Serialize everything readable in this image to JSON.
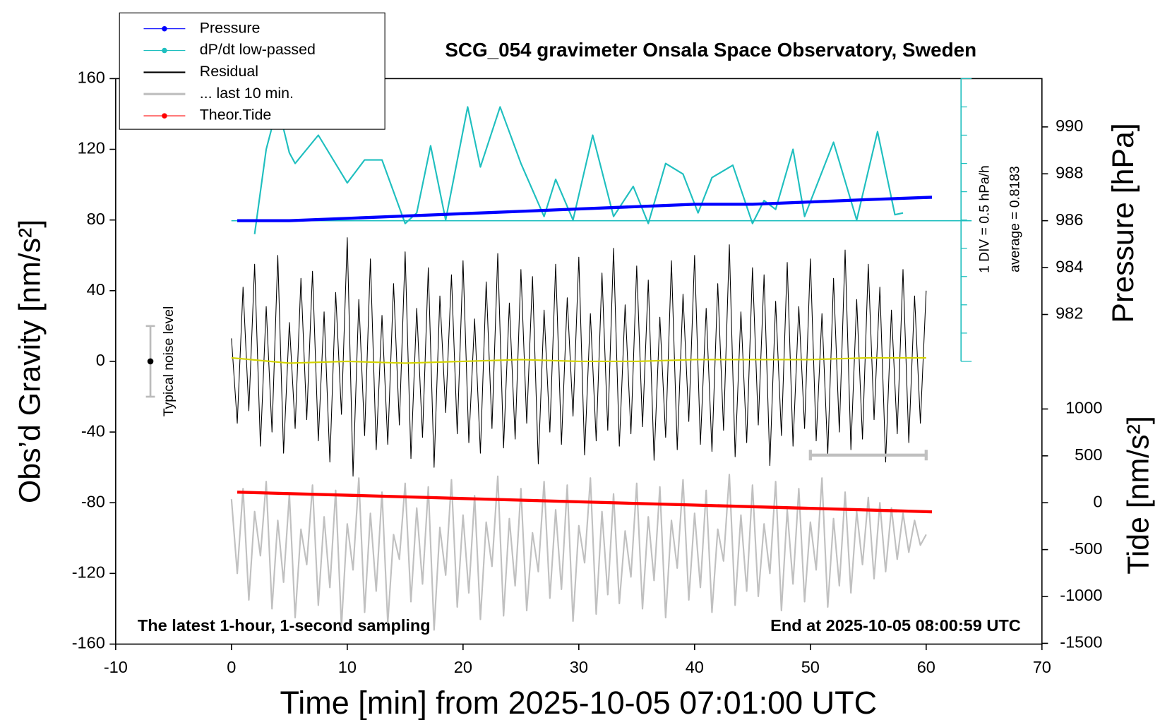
{
  "chart_data": {
    "type": "line",
    "title": "SCG_054 gravimeter Onsala Space Observatory, Sweden",
    "x_label": "Time [min] from 2025-10-05 07:01:00 UTC",
    "y_label": "Obs’d Gravity [nm/s²]",
    "y2_label": "Pressure [hPa]",
    "y3_label": "Tide [nm/s²]",
    "annotations": [
      "The latest 1-hour, 1-second sampling",
      "End at 2025-10-05 08:00:59 UTC",
      "1 DIV = 0.5 hPa/h",
      "average = 0.8183"
    ],
    "noise_bar": {
      "label": "Typical noise level",
      "x": -7,
      "value": 0,
      "error": 20
    },
    "xlim": [
      -10,
      70
    ],
    "xticks": [
      -10,
      0,
      10,
      20,
      30,
      40,
      50,
      60,
      70
    ],
    "ylim": [
      -160,
      160
    ],
    "yticks": [
      -160,
      -120,
      -80,
      -40,
      0,
      40,
      80,
      120,
      160
    ],
    "y2lim": [
      967.94,
      992.06
    ],
    "y2ticks": [
      982,
      984,
      986,
      988,
      990
    ],
    "y3lim": [
      -1508,
      4524
    ],
    "y3ticks": [
      -1500,
      -1000,
      -500,
      0,
      500,
      1000
    ],
    "x": [
      0,
      0.5,
      1,
      1.5,
      2,
      2.5,
      3,
      3.5,
      4,
      4.5,
      5,
      5.5,
      6,
      6.5,
      7,
      7.5,
      8,
      8.5,
      9,
      9.5,
      10,
      10.5,
      11,
      11.5,
      12,
      12.5,
      13,
      13.5,
      14,
      14.5,
      15,
      15.5,
      16,
      16.5,
      17,
      17.5,
      18,
      18.5,
      19,
      19.5,
      20,
      20.5,
      21,
      21.5,
      22,
      22.5,
      23,
      23.5,
      24,
      24.5,
      25,
      25.5,
      26,
      26.5,
      27,
      27.5,
      28,
      28.5,
      29,
      29.5,
      30,
      30.5,
      31,
      31.5,
      32,
      32.5,
      33,
      33.5,
      34,
      34.5,
      35,
      35.5,
      36,
      36.5,
      37,
      37.5,
      38,
      38.5,
      39,
      39.5,
      40,
      40.5,
      41,
      41.5,
      42,
      42.5,
      43,
      43.5,
      44,
      44.5,
      45,
      45.5,
      46,
      46.5,
      47,
      47.5,
      48,
      48.5,
      49,
      49.5,
      50,
      50.5,
      51,
      51.5,
      52,
      52.5,
      53,
      53.5,
      54,
      54.5,
      55,
      55.5,
      56,
      56.5,
      57,
      57.5,
      58,
      58.5,
      59,
      59.5,
      60
    ],
    "series": [
      {
        "name": "Pressure",
        "color": "#0000ff",
        "marker": true,
        "axis": "y2",
        "x": [
          0.5,
          5,
          10,
          15,
          20,
          25,
          30,
          35,
          40,
          45,
          50,
          55,
          60.5
        ],
        "values": [
          986.0,
          986.0,
          986.1,
          986.2,
          986.3,
          986.4,
          986.5,
          986.6,
          986.7,
          986.7,
          986.8,
          986.9,
          987.0
        ]
      },
      {
        "name": "dP/dt low-passed",
        "color": "#1fbfbf",
        "marker": true,
        "x": [
          2,
          3,
          4,
          5,
          5.5,
          7.5,
          10,
          11.5,
          13,
          15,
          16,
          17.2,
          18.5,
          20.4,
          21.5,
          23.2,
          25,
          27,
          28,
          29.5,
          31.2,
          33,
          34.7,
          36,
          37.5,
          39,
          40.3,
          41.5,
          43.3,
          45,
          46,
          47,
          48.5,
          49.5,
          52,
          54,
          55.8,
          57.3,
          58
        ],
        "values": [
          72,
          120,
          145,
          118,
          112,
          128,
          101,
          114,
          114,
          78,
          84,
          122,
          80,
          144,
          110,
          144,
          112,
          82,
          103,
          80,
          128,
          82,
          99,
          78,
          112,
          106,
          84,
          104,
          111,
          78,
          91,
          86,
          120,
          82,
          124,
          80,
          130,
          83,
          84
        ]
      },
      {
        "name": "Residual",
        "color": "#000000",
        "values": [
          13,
          -35,
          42,
          -28,
          55,
          -48,
          31,
          -40,
          60,
          -52,
          22,
          -38,
          47,
          -33,
          51,
          -45,
          28,
          -57,
          39,
          -30,
          70,
          -65,
          35,
          -42,
          58,
          -50,
          26,
          -47,
          44,
          -36,
          62,
          -55,
          30,
          -43,
          53,
          -60,
          37,
          -29,
          49,
          -41,
          57,
          -46,
          24,
          -52,
          45,
          -38,
          61,
          -49,
          33,
          -44,
          52,
          -35,
          48,
          -58,
          29,
          -40,
          55,
          -47,
          36,
          -31,
          59,
          -53,
          27,
          -45,
          50,
          -39,
          64,
          -48,
          32,
          -41,
          54,
          -37,
          46,
          -56,
          25,
          -43,
          57,
          -50,
          38,
          -34,
          60,
          -47,
          30,
          -51,
          44,
          -39,
          66,
          -54,
          28,
          -46,
          53,
          -36,
          49,
          -59,
          34,
          -42,
          56,
          -48,
          31,
          -38,
          58,
          -45,
          27,
          -53,
          47,
          -40,
          63,
          -50,
          35,
          -44,
          55,
          -33,
          42,
          -57,
          29,
          -41,
          52,
          -46,
          37,
          -35,
          40
        ]
      },
      {
        "name": "... last 10 min.",
        "color": "#c0c0c0",
        "values": [
          -78,
          -120,
          -72,
          -135,
          -85,
          -110,
          -68,
          -140,
          -90,
          -125,
          -75,
          -145,
          -95,
          -115,
          -70,
          -138,
          -88,
          -128,
          -73,
          -150,
          -92,
          -118,
          -66,
          -142,
          -86,
          -130,
          -74,
          -148,
          -98,
          -112,
          -69,
          -136,
          -83,
          -126,
          -71,
          -152,
          -94,
          -121,
          -67,
          -139,
          -87,
          -131,
          -76,
          -146,
          -91,
          -116,
          -65,
          -144,
          -89,
          -127,
          -72,
          -141,
          -97,
          -119,
          -68,
          -134,
          -84,
          -129,
          -70,
          -147,
          -93,
          -114,
          -66,
          -143,
          -85,
          -132,
          -75,
          -137,
          -96,
          -122,
          -69,
          -140,
          -88,
          -124,
          -71,
          -145,
          -90,
          -117,
          -67,
          -135,
          -86,
          -128,
          -73,
          -142,
          -95,
          -113,
          -64,
          -138,
          -87,
          -130,
          -70,
          -133,
          -92,
          -120,
          -68,
          -141,
          -84,
          -126,
          -72,
          -136,
          -91,
          -118,
          -66,
          -139,
          -89,
          -127,
          -74,
          -131,
          -85,
          -115,
          -77,
          -123,
          -80,
          -119,
          -83,
          -112,
          -86,
          -108,
          -90,
          -104,
          -98
        ]
      },
      {
        "name": "Theor.Tide",
        "color": "#ff0000",
        "marker": true,
        "axis": "y3",
        "x": [
          0.5,
          10,
          20,
          30,
          40,
          50,
          60.5
        ],
        "values": [
          113,
          80,
          45,
          10,
          -25,
          -60,
          -97
        ]
      },
      {
        "color": "#d4d400",
        "x": [
          0,
          5,
          10,
          15,
          20,
          25,
          30,
          35,
          40,
          45,
          50,
          55,
          60
        ],
        "values": [
          2,
          -1,
          0,
          -1,
          0,
          1,
          0,
          0,
          1,
          1,
          1,
          2,
          2
        ]
      }
    ]
  }
}
